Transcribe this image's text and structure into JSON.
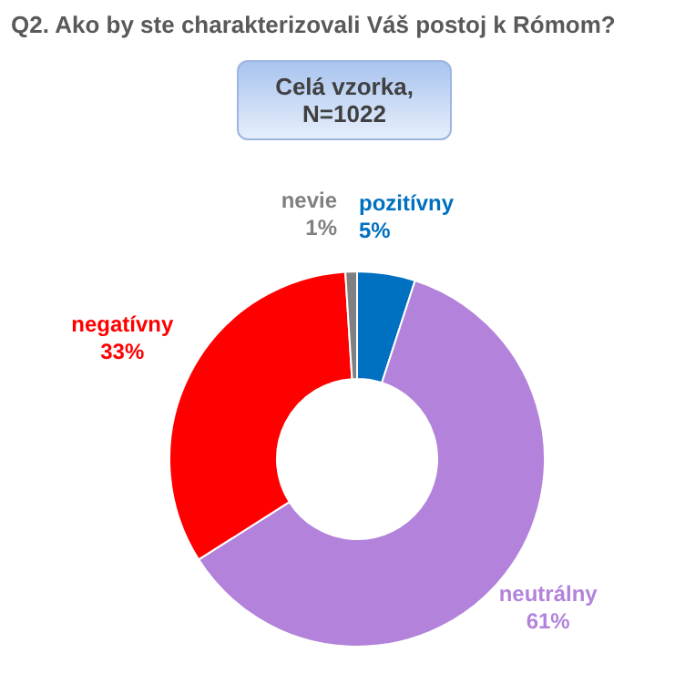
{
  "chart_data": {
    "type": "donut",
    "title": "Q2. Ako by ste charakterizovali Váš postoj k Rómom?",
    "subtitle": "Celá vzorka, N=1022",
    "categories": [
      "pozitívny",
      "neutrálny",
      "negatívny",
      "nevie"
    ],
    "values": [
      5,
      61,
      33,
      1
    ],
    "value_labels": [
      "5%",
      "61%",
      "33%",
      "1%"
    ],
    "colors": [
      "#0070c0",
      "#b383db",
      "#ff0000",
      "#808080"
    ],
    "legend": false
  }
}
